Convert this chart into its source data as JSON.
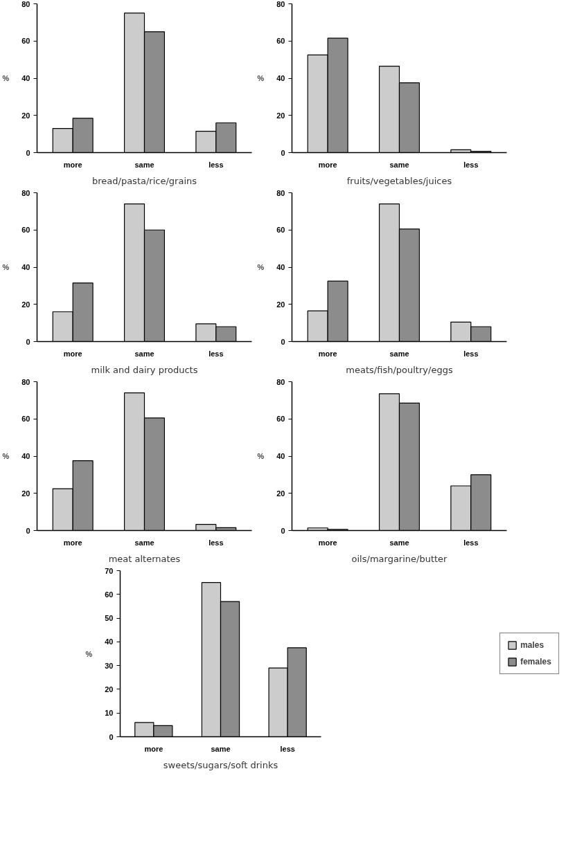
{
  "chart_data": [
    {
      "type": "bar",
      "title": "bread/pasta/rice/grains",
      "ylabel": "%",
      "categories": [
        "more",
        "same",
        "less"
      ],
      "ylim": [
        0,
        80
      ],
      "yticks": [
        0,
        20,
        40,
        60,
        80
      ],
      "grid": false,
      "series": [
        {
          "color": "#cccccc",
          "values": [
            13,
            75,
            11.5
          ]
        },
        {
          "color": "#8c8c8c",
          "values": [
            18.5,
            65,
            16
          ]
        }
      ]
    },
    {
      "type": "bar",
      "title": "fruits/vegetables/juices",
      "ylabel": "%",
      "categories": [
        "more",
        "same",
        "less"
      ],
      "ylim": [
        0,
        80
      ],
      "yticks": [
        0,
        20,
        40,
        60,
        80
      ],
      "grid": false,
      "series": [
        {
          "color": "#cccccc",
          "values": [
            52.5,
            46.5,
            1.5
          ]
        },
        {
          "color": "#8c8c8c",
          "values": [
            61.5,
            37.5,
            0.7
          ]
        }
      ]
    },
    {
      "type": "bar",
      "title": "milk and dairy products",
      "ylabel": "%",
      "categories": [
        "more",
        "same",
        "less"
      ],
      "ylim": [
        0,
        80
      ],
      "yticks": [
        0,
        20,
        40,
        60,
        80
      ],
      "grid": false,
      "series": [
        {
          "color": "#cccccc",
          "values": [
            16,
            74,
            9.5
          ]
        },
        {
          "color": "#8c8c8c",
          "values": [
            31.5,
            60,
            8
          ]
        }
      ]
    },
    {
      "type": "bar",
      "title": "meats/fish/poultry/eggs",
      "ylabel": "%",
      "categories": [
        "more",
        "same",
        "less"
      ],
      "ylim": [
        0,
        80
      ],
      "yticks": [
        0,
        20,
        40,
        60,
        80
      ],
      "grid": false,
      "series": [
        {
          "color": "#cccccc",
          "values": [
            16.5,
            74,
            10.5
          ]
        },
        {
          "color": "#8c8c8c",
          "values": [
            32.5,
            60.5,
            8
          ]
        }
      ]
    },
    {
      "type": "bar",
      "title": "meat alternates",
      "ylabel": "%",
      "categories": [
        "more",
        "same",
        "less"
      ],
      "ylim": [
        0,
        80
      ],
      "yticks": [
        0,
        20,
        40,
        60,
        80
      ],
      "grid": false,
      "series": [
        {
          "color": "#cccccc",
          "values": [
            22.5,
            74,
            3.3
          ]
        },
        {
          "color": "#8c8c8c",
          "values": [
            37.5,
            60.5,
            1.5
          ]
        }
      ]
    },
    {
      "type": "bar",
      "title": "oils/margarine/butter",
      "ylabel": "%",
      "categories": [
        "more",
        "same",
        "less"
      ],
      "ylim": [
        0,
        80
      ],
      "yticks": [
        0,
        20,
        40,
        60,
        80
      ],
      "grid": false,
      "series": [
        {
          "color": "#cccccc",
          "values": [
            1.4,
            73.5,
            24
          ]
        },
        {
          "color": "#8c8c8c",
          "values": [
            0.6,
            68.5,
            30
          ]
        }
      ]
    },
    {
      "type": "bar",
      "title": "sweets/sugars/soft drinks",
      "ylabel": "%",
      "categories": [
        "more",
        "same",
        "less"
      ],
      "ylim": [
        0,
        70
      ],
      "yticks": [
        0,
        10,
        20,
        30,
        40,
        50,
        60,
        70
      ],
      "grid": false,
      "legend": "right",
      "series": [
        {
          "name": "males",
          "color": "#cccccc",
          "values": [
            6,
            65,
            29
          ]
        },
        {
          "name": "females",
          "color": "#8c8c8c",
          "values": [
            4.7,
            57,
            37.5
          ]
        }
      ]
    }
  ]
}
